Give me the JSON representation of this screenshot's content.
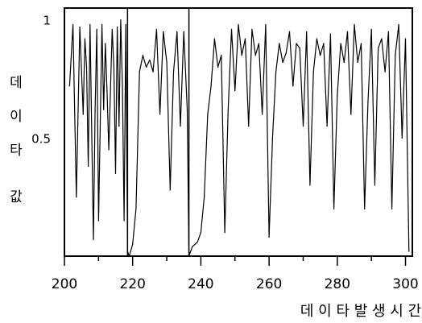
{
  "chart_data": {
    "type": "line",
    "title": "",
    "xlabel": "데 이 타  발 생 시 간",
    "ylabel": [
      "데",
      "이",
      "타",
      "값"
    ],
    "xlim": [
      200,
      302
    ],
    "ylim": [
      0,
      1.05
    ],
    "x_ticks": [
      200,
      220,
      240,
      260,
      280,
      300
    ],
    "x_minor_ticks": [
      210,
      230,
      250,
      270,
      290
    ],
    "y_ticks": [
      0.5,
      1
    ],
    "y_tick_labels": [
      "0.5",
      "1"
    ],
    "grid": false,
    "legend": "none",
    "vertical_markers": [
      218.5,
      236.5
    ],
    "series": [
      {
        "x": [
          201.5,
          202.5,
          203.5,
          204.5,
          205.5,
          206,
          206.5,
          207,
          207.5,
          208.5,
          209,
          209.5,
          210,
          211,
          211.5,
          212,
          212.5,
          213,
          214,
          214.5,
          215,
          215.5,
          216,
          216.5,
          217,
          217.5,
          218,
          218.5,
          219,
          220,
          221,
          222,
          223,
          224,
          225,
          226,
          227,
          228,
          229,
          230,
          231,
          232,
          233,
          234,
          235,
          236,
          236.5,
          237.5,
          239,
          240,
          241,
          242,
          243,
          244,
          245,
          246,
          247,
          248,
          249,
          250,
          251,
          252,
          253,
          254,
          255,
          256,
          257,
          258,
          259,
          260,
          261,
          262,
          263,
          264,
          265,
          266,
          267,
          268,
          269,
          270,
          271,
          272,
          273,
          274,
          275,
          276,
          277,
          278,
          279,
          280,
          281,
          282,
          283,
          284,
          285,
          286,
          287,
          288,
          289,
          290,
          291,
          292,
          293,
          294,
          295,
          296,
          297,
          298,
          299,
          300,
          301
        ],
        "y": [
          0.72,
          0.98,
          0.25,
          0.97,
          0.6,
          0.92,
          0.8,
          0.38,
          0.98,
          0.07,
          0.62,
          0.96,
          0.15,
          0.98,
          0.62,
          0.9,
          0.7,
          0.45,
          0.96,
          0.8,
          0.35,
          0.97,
          0.55,
          1.0,
          0.72,
          0.15,
          0.98,
          0.02,
          0.0,
          0.05,
          0.2,
          0.78,
          0.85,
          0.8,
          0.83,
          0.78,
          0.96,
          0.6,
          0.95,
          0.82,
          0.28,
          0.78,
          0.95,
          0.55,
          0.95,
          0.62,
          0.0,
          0.04,
          0.06,
          0.1,
          0.25,
          0.6,
          0.72,
          0.92,
          0.8,
          0.85,
          0.1,
          0.62,
          0.96,
          0.7,
          0.98,
          0.85,
          0.92,
          0.55,
          0.96,
          0.85,
          0.9,
          0.6,
          0.98,
          0.08,
          0.5,
          0.78,
          0.9,
          0.82,
          0.86,
          0.95,
          0.72,
          0.9,
          0.88,
          0.55,
          0.95,
          0.3,
          0.78,
          0.92,
          0.85,
          0.9,
          0.55,
          0.94,
          0.2,
          0.68,
          0.9,
          0.82,
          0.95,
          0.6,
          0.98,
          0.82,
          0.9,
          0.2,
          0.65,
          0.96,
          0.3,
          0.88,
          0.92,
          0.78,
          0.95,
          0.2,
          0.85,
          0.98,
          0.5,
          0.92,
          0.02
        ]
      }
    ]
  }
}
